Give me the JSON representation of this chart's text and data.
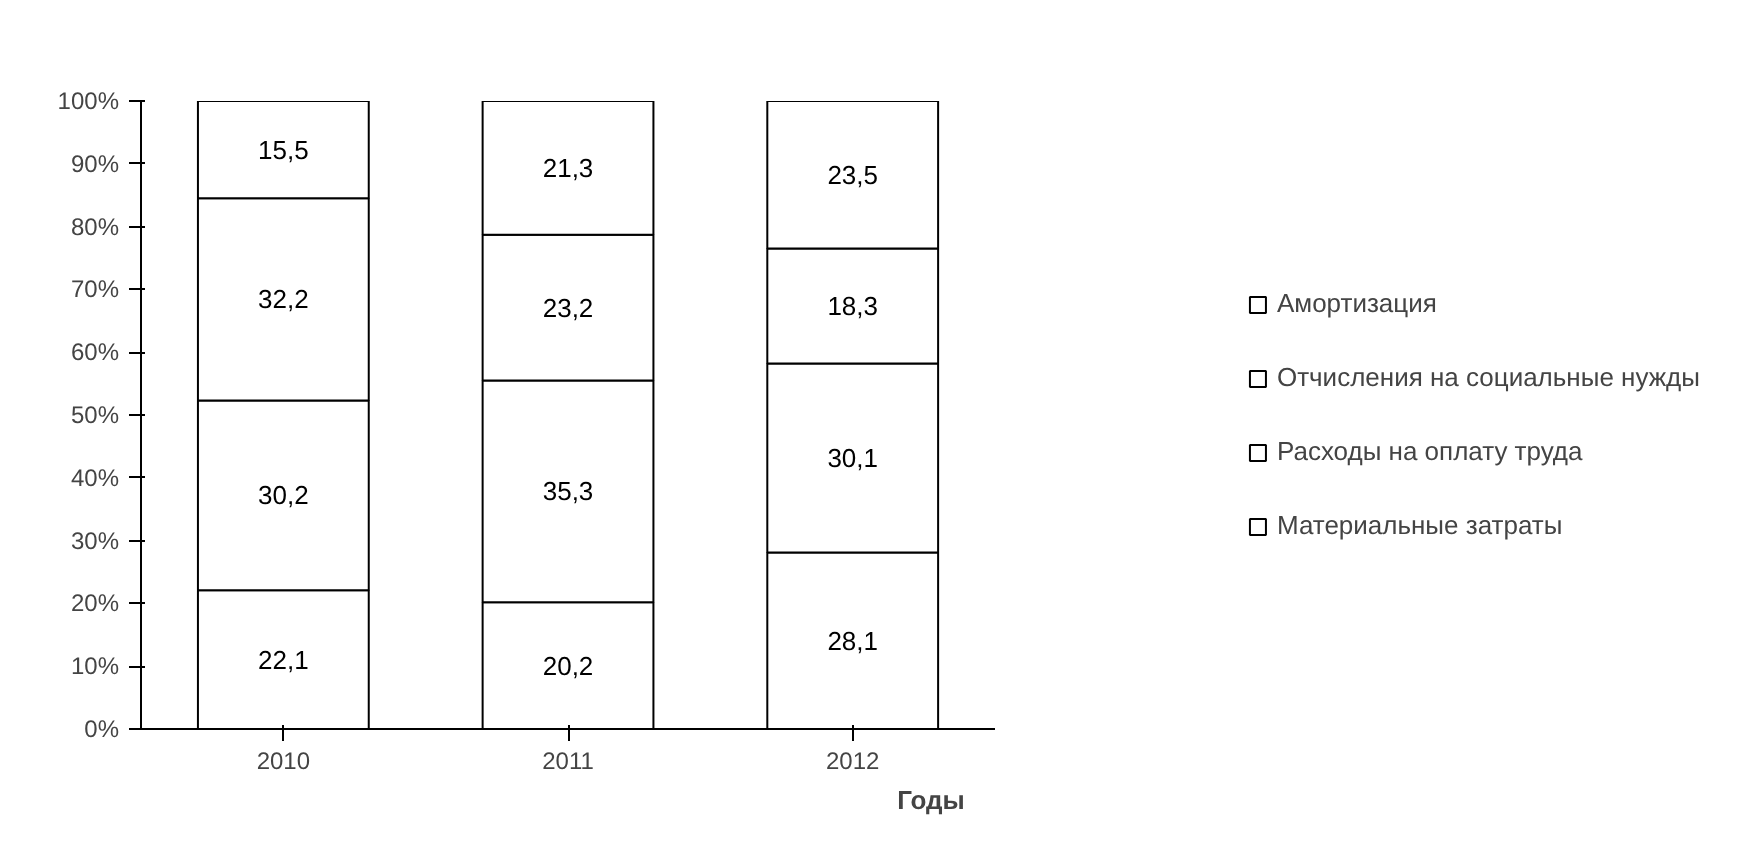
{
  "chart_data": {
    "type": "bar",
    "stacked": true,
    "xlabel": "Годы",
    "categories": [
      "2010",
      "2011",
      "2012"
    ],
    "series": [
      {
        "name": "Материальные затраты",
        "color": "#ffffff",
        "values": [
          22.1,
          20.2,
          28.1
        ],
        "value_labels": [
          "22,1",
          "20,2",
          "28,1"
        ]
      },
      {
        "name": "Расходы на оплату труда",
        "color": "#ffffff",
        "values": [
          30.2,
          35.3,
          30.1
        ],
        "value_labels": [
          "30,2",
          "35,3",
          "30,1"
        ]
      },
      {
        "name": "Отчисления на социальные нужды",
        "color": "#ffffff",
        "values": [
          32.2,
          23.2,
          18.3
        ],
        "value_labels": [
          "32,2",
          "23,2",
          "18,3"
        ]
      },
      {
        "name": "Амортизация",
        "color": "#ffffff",
        "values": [
          15.5,
          21.3,
          23.5
        ],
        "value_labels": [
          "15,5",
          "21,3",
          "23,5"
        ]
      }
    ],
    "ylim": [
      0,
      100
    ],
    "yticks": [
      {
        "value": 0,
        "label": "0%"
      },
      {
        "value": 10,
        "label": "10%"
      },
      {
        "value": 20,
        "label": "20%"
      },
      {
        "value": 30,
        "label": "30%"
      },
      {
        "value": 40,
        "label": "40%"
      },
      {
        "value": 50,
        "label": "50%"
      },
      {
        "value": 60,
        "label": "60%"
      },
      {
        "value": 70,
        "label": "70%"
      },
      {
        "value": 80,
        "label": "80%"
      },
      {
        "value": 90,
        "label": "90%"
      },
      {
        "value": 100,
        "label": "100%"
      }
    ],
    "grid": false,
    "legend": "right"
  }
}
